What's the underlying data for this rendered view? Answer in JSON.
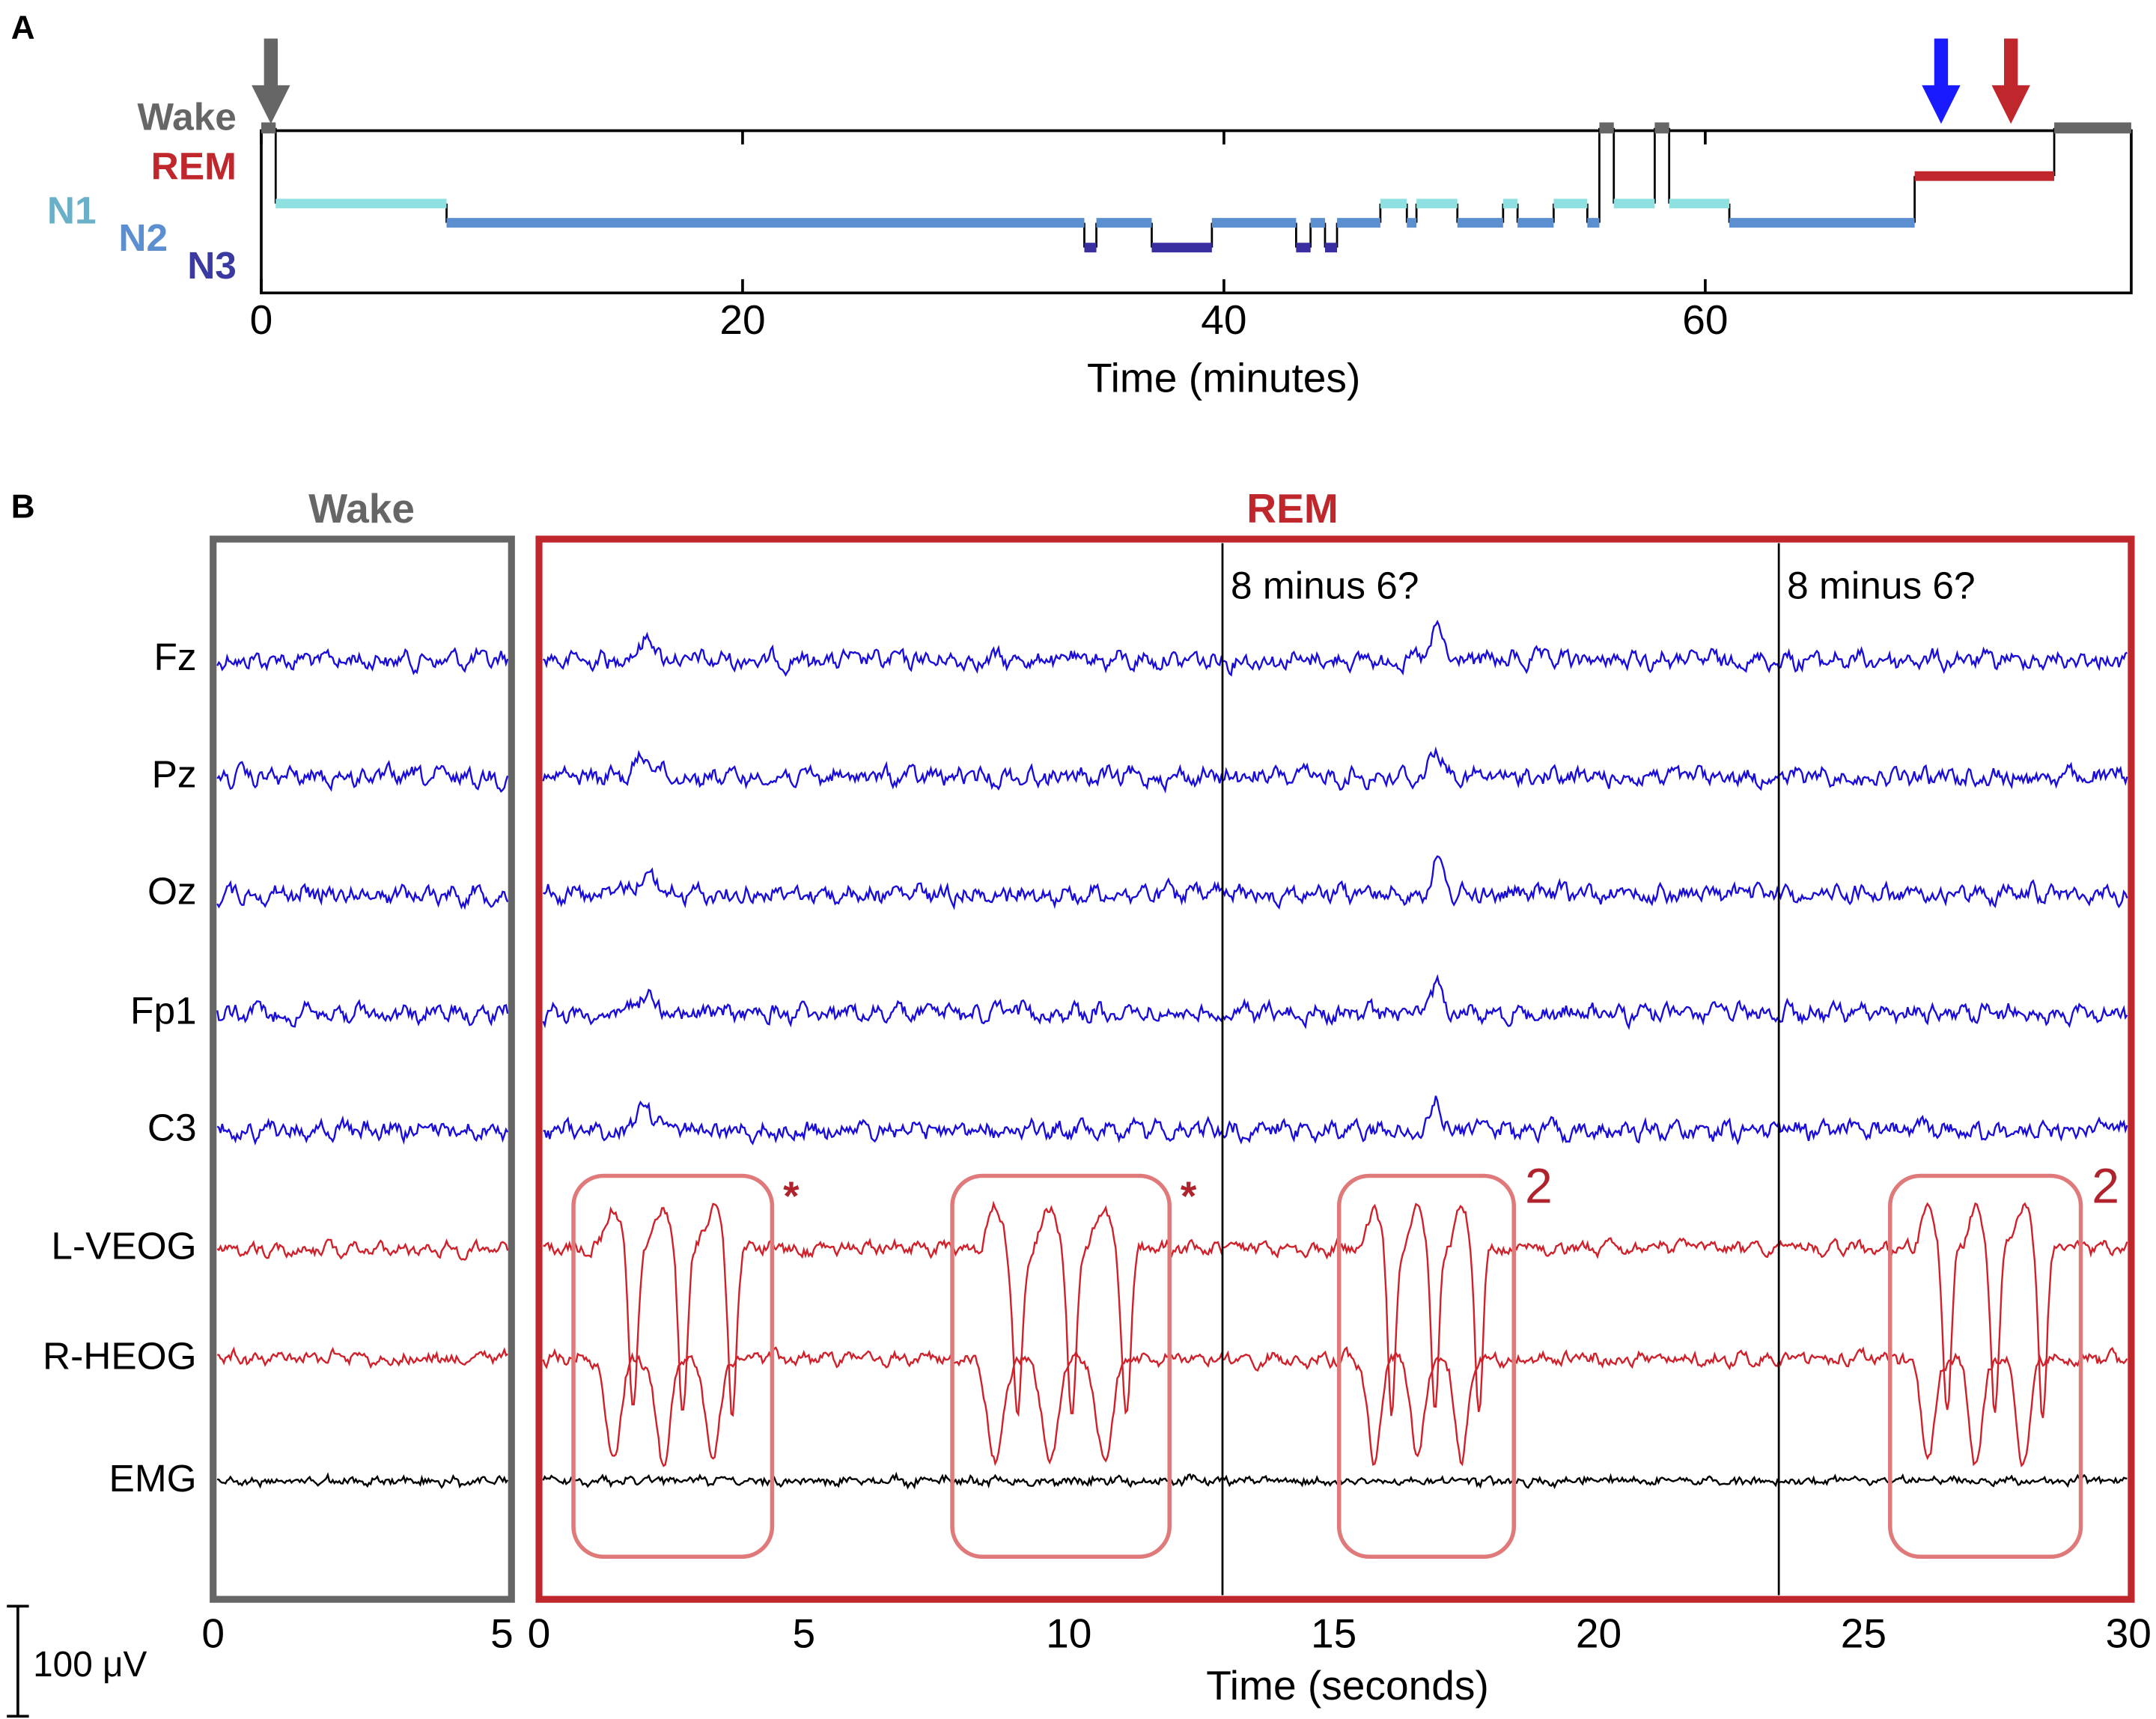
{
  "panel_a": {
    "label": "A",
    "type": "hypnogram",
    "x_label": "Time (minutes)",
    "xlim": [
      0,
      77.7
    ],
    "xticks": [
      0,
      20,
      40,
      60
    ],
    "series": [
      {
        "name": "Wake",
        "color": "#666666",
        "intervals": [
          [
            0,
            0.6
          ],
          [
            55.6,
            56.2
          ],
          [
            57.9,
            58.5
          ],
          [
            74.5,
            77.7
          ]
        ]
      },
      {
        "name": "REM",
        "color": "#c0272d",
        "intervals": [
          [
            68.7,
            74.5
          ]
        ]
      },
      {
        "name": "N1",
        "color": "#8fe0e0",
        "intervals": [
          [
            0.6,
            7.7
          ],
          [
            46.5,
            47.6
          ],
          [
            48,
            49.7
          ],
          [
            51.6,
            52.2
          ],
          [
            53.7,
            55.1
          ],
          [
            56.2,
            57.9
          ],
          [
            58.5,
            61
          ]
        ]
      },
      {
        "name": "N2",
        "color": "#5b8fd0",
        "intervals": [
          [
            7.7,
            34.2
          ],
          [
            34.7,
            37
          ],
          [
            39.5,
            43
          ],
          [
            43.6,
            44.2
          ],
          [
            44.7,
            46.5
          ],
          [
            47.6,
            48
          ],
          [
            49.7,
            51.6
          ],
          [
            52.2,
            53.7
          ],
          [
            55.1,
            55.6
          ],
          [
            61,
            68.7
          ]
        ]
      },
      {
        "name": "N3",
        "color": "#3a2fa0",
        "intervals": [
          [
            34.2,
            34.7
          ],
          [
            37,
            39.5
          ],
          [
            43,
            43.6
          ],
          [
            44.2,
            44.7
          ]
        ]
      }
    ],
    "arrows": [
      {
        "x": 0.4,
        "color": "#666666"
      },
      {
        "x": 69.8,
        "color": "#1a1aff"
      },
      {
        "x": 72.7,
        "color": "#c0272d"
      }
    ]
  },
  "panel_b": {
    "label": "B",
    "type": "line",
    "x_label": "Time (seconds)",
    "scale_bar": "100 μV",
    "wake": {
      "title": "Wake",
      "color": "#666666",
      "xlim": [
        0,
        5
      ],
      "xticks": [
        0,
        5
      ]
    },
    "rem": {
      "title": "REM",
      "color": "#c0272d",
      "xlim": [
        0,
        30
      ],
      "xticks": [
        0,
        5,
        10,
        15,
        20,
        25,
        30
      ],
      "markers": [
        {
          "x": 12.9,
          "label": "8 minus 6?"
        },
        {
          "x": 23.4,
          "label": "8 minus 6?"
        }
      ],
      "eye_movement_boxes": [
        {
          "x": [
            0.65,
            4.4
          ],
          "label": "*"
        },
        {
          "x": [
            7.8,
            11.9
          ],
          "label": "*"
        },
        {
          "x": [
            15.1,
            18.4
          ],
          "label": "2"
        },
        {
          "x": [
            25.5,
            29.1
          ],
          "label": "2"
        }
      ]
    },
    "channels": [
      {
        "name": "Fz",
        "color": "#1a0dd9"
      },
      {
        "name": "Pz",
        "color": "#1a0dd9"
      },
      {
        "name": "Oz",
        "color": "#1a0dd9"
      },
      {
        "name": "Fp1",
        "color": "#1a0dd9"
      },
      {
        "name": "C3",
        "color": "#1a0dd9"
      },
      {
        "name": "L-VEOG",
        "color": "#d0202a"
      },
      {
        "name": "R-HEOG",
        "color": "#d0202a"
      },
      {
        "name": "EMG",
        "color": "#000000"
      }
    ]
  }
}
